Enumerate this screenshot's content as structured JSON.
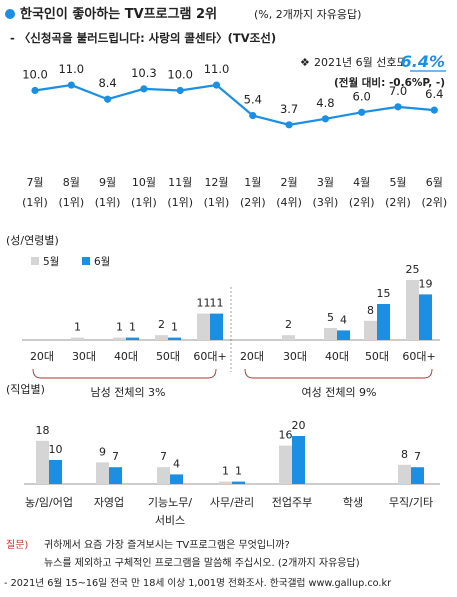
{
  "header": {
    "title": "한국인이 좋아하는 TV프로그램 2위",
    "title_note": "(%, 2개까지 자유응답)",
    "subtitle": "- 〈신청곡을 불러드립니다: 사랑의 콜센타〉(TV조선)",
    "rating_label": "2021년 6월 선호도:",
    "rating_value": "6.4%",
    "change_note": "(전월 대비: -0.6%P, -)"
  },
  "colors": {
    "accent": "#1a8fe3",
    "previous": "#d5d5d5",
    "text": "#222222",
    "bracket": "#b03030",
    "question_label": "#c0392b"
  },
  "chart_data": [
    {
      "type": "line",
      "categories": [
        "7월",
        "8월",
        "9월",
        "10월",
        "11월",
        "12월",
        "1월",
        "2월",
        "3월",
        "4월",
        "5월",
        "6월"
      ],
      "ranks": [
        "(1위)",
        "(1위)",
        "(1위)",
        "(1위)",
        "(1위)",
        "(1위)",
        "(2위)",
        "(4위)",
        "(3위)",
        "(2위)",
        "(2위)",
        "(2위)"
      ],
      "values": [
        10.0,
        11.0,
        8.4,
        10.3,
        10.0,
        11.0,
        5.4,
        3.7,
        4.8,
        6.0,
        7.0,
        6.4
      ],
      "value_labels": [
        "10.0",
        "11.0",
        "8.4",
        "10.3",
        "10.0",
        "11.0",
        "5.4",
        "3.7",
        "4.8",
        "6.0",
        "7.0",
        "6.4"
      ],
      "ylim": [
        0,
        16
      ]
    },
    {
      "type": "bar",
      "section_label": "(성/연령별)",
      "legend": [
        "5월",
        "6월"
      ],
      "categories": [
        "20대",
        "30대",
        "40대",
        "50대",
        "60대+",
        "20대",
        "30대",
        "40대",
        "50대",
        "60대+"
      ],
      "series": [
        {
          "name": "5월",
          "values": [
            0,
            1,
            1,
            2,
            11,
            null,
            2,
            5,
            8,
            25
          ],
          "labels": [
            "",
            "1",
            "1",
            "2",
            "11",
            "",
            "2",
            "5",
            "8",
            "25"
          ]
        },
        {
          "name": "6월",
          "values": [
            0,
            0,
            1,
            1,
            11,
            0,
            0,
            4,
            15,
            19
          ],
          "labels": [
            "",
            "",
            "1",
            "1",
            "11",
            "",
            "",
            "4",
            "15",
            "19"
          ]
        }
      ],
      "group_labels": [
        "남성 전체의 3%",
        "여성 전체의 9%"
      ],
      "ylim": [
        0,
        30
      ]
    },
    {
      "type": "bar",
      "section_label": "(직업별)",
      "categories": [
        "농/임/어업",
        "자영업",
        "기능노무/\n서비스",
        "사무/관리",
        "전업주부",
        "학생",
        "무직/기타"
      ],
      "series": [
        {
          "name": "5월",
          "values": [
            18,
            9,
            7,
            1,
            16,
            null,
            8
          ],
          "labels": [
            "18",
            "9",
            "7",
            "1",
            "16",
            "",
            "8"
          ]
        },
        {
          "name": "6월",
          "values": [
            10,
            7,
            4,
            1,
            20,
            null,
            7
          ],
          "labels": [
            "10",
            "7",
            "4",
            "1",
            "20",
            "",
            "7"
          ]
        }
      ],
      "ylim": [
        0,
        30
      ]
    }
  ],
  "footer": {
    "question_label": "질문)",
    "question_line1": "귀하께서 요즘 가장 즐겨보시는 TV프로그램은 무엇입니까?",
    "question_line2": "뉴스를 제외하고 구체적인 프로그램을 말씀해 주십시오. (2개까지 자유응답)",
    "source": "- 2021년 6월 15~16일 전국 만 18세 이상 1,001명 전화조사. 한국갤럽 www.gallup.co.kr"
  }
}
